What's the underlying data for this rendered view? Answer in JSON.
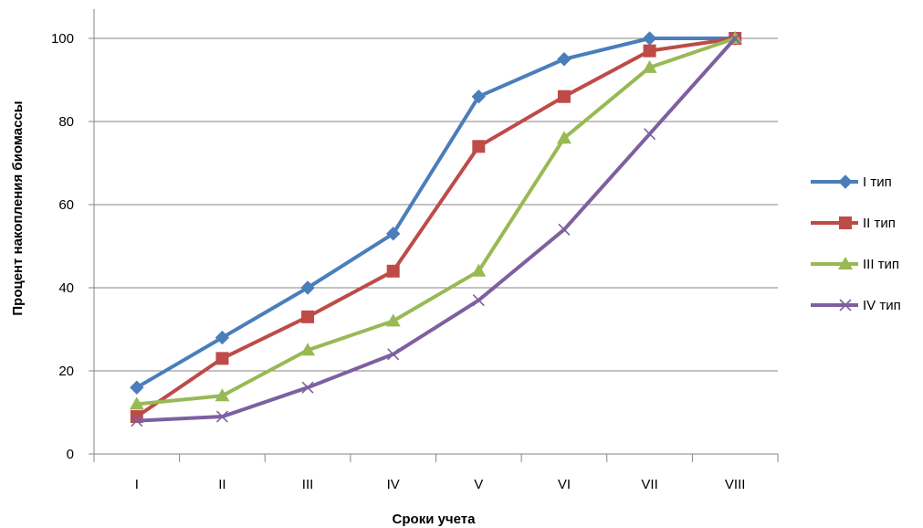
{
  "chart_data": {
    "type": "line",
    "categories": [
      "I",
      "II",
      "III",
      "IV",
      "V",
      "VI",
      "VII",
      "VIII"
    ],
    "series": [
      {
        "name": "I тип",
        "color": "#4a7ebb",
        "marker": "diamond",
        "values": [
          16,
          28,
          40,
          53,
          86,
          95,
          100,
          100
        ]
      },
      {
        "name": "II тип",
        "color": "#be4b48",
        "marker": "square",
        "values": [
          9,
          23,
          33,
          44,
          74,
          86,
          97,
          100
        ]
      },
      {
        "name": "III тип",
        "color": "#98b954",
        "marker": "triangle",
        "values": [
          12,
          14,
          25,
          32,
          44,
          76,
          93,
          100
        ]
      },
      {
        "name": "IV тип",
        "color": "#7d60a0",
        "marker": "x",
        "values": [
          8,
          9,
          16,
          24,
          37,
          54,
          77,
          100
        ]
      }
    ],
    "xlabel": "Сроки учета",
    "ylabel": "Процент накопления  биомассы",
    "ylim": [
      0,
      100
    ],
    "yticks": [
      0,
      20,
      40,
      60,
      80,
      100
    ],
    "grid": true,
    "legend_position": "right"
  }
}
